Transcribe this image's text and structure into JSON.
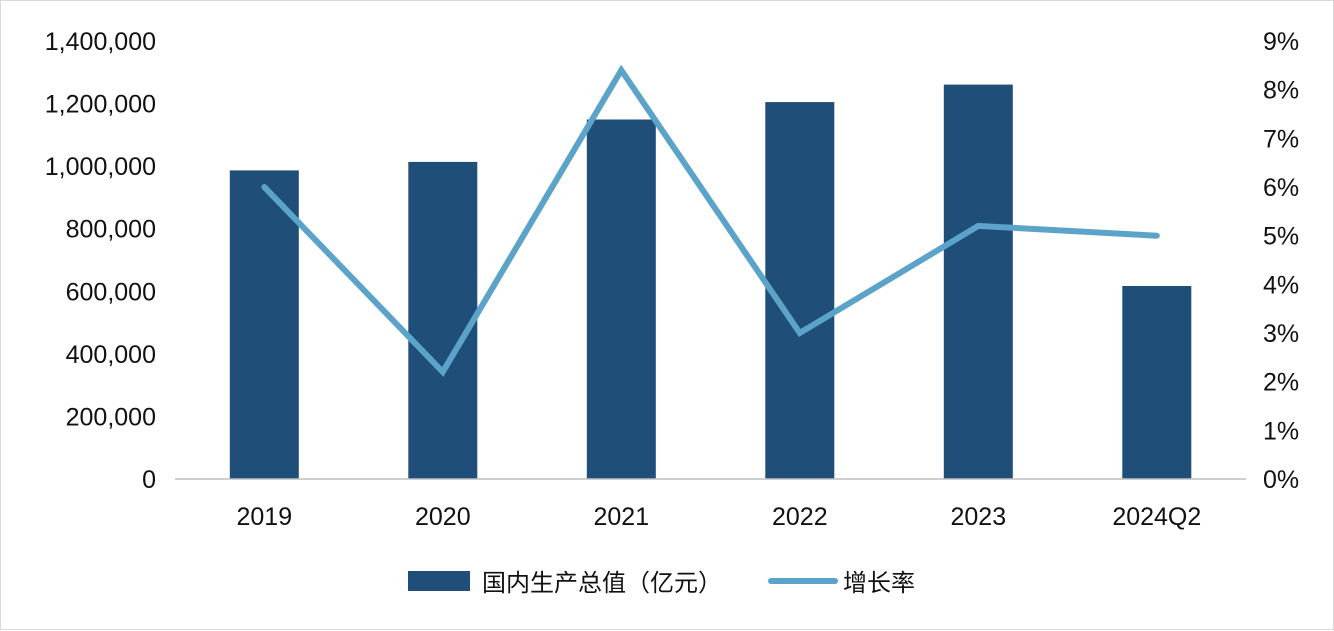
{
  "chart_data": {
    "type": "bar",
    "categories": [
      "2019",
      "2020",
      "2021",
      "2022",
      "2023",
      "2024Q2"
    ],
    "series": [
      {
        "name": "国内生产总值（亿元）",
        "type": "bar",
        "axis": "left",
        "color": "#1f4e79",
        "values": [
          986515,
          1013567,
          1149237,
          1204724,
          1260582,
          616836
        ]
      },
      {
        "name": "增长率",
        "type": "line",
        "axis": "right",
        "color": "#5ba3c9",
        "values": [
          6.0,
          2.2,
          8.4,
          3.0,
          5.2,
          5.0
        ]
      }
    ],
    "y_left": {
      "min": 0,
      "max": 1400000,
      "step": 200000,
      "tick_labels": [
        "0",
        "200,000",
        "400,000",
        "600,000",
        "800,000",
        "1,000,000",
        "1,200,000",
        "1,400,000"
      ]
    },
    "y_right": {
      "min": 0,
      "max": 9,
      "step": 1,
      "tick_labels": [
        "0%",
        "1%",
        "2%",
        "3%",
        "4%",
        "5%",
        "6%",
        "7%",
        "8%",
        "9%"
      ]
    },
    "grid": false,
    "legend_position": "bottom"
  }
}
